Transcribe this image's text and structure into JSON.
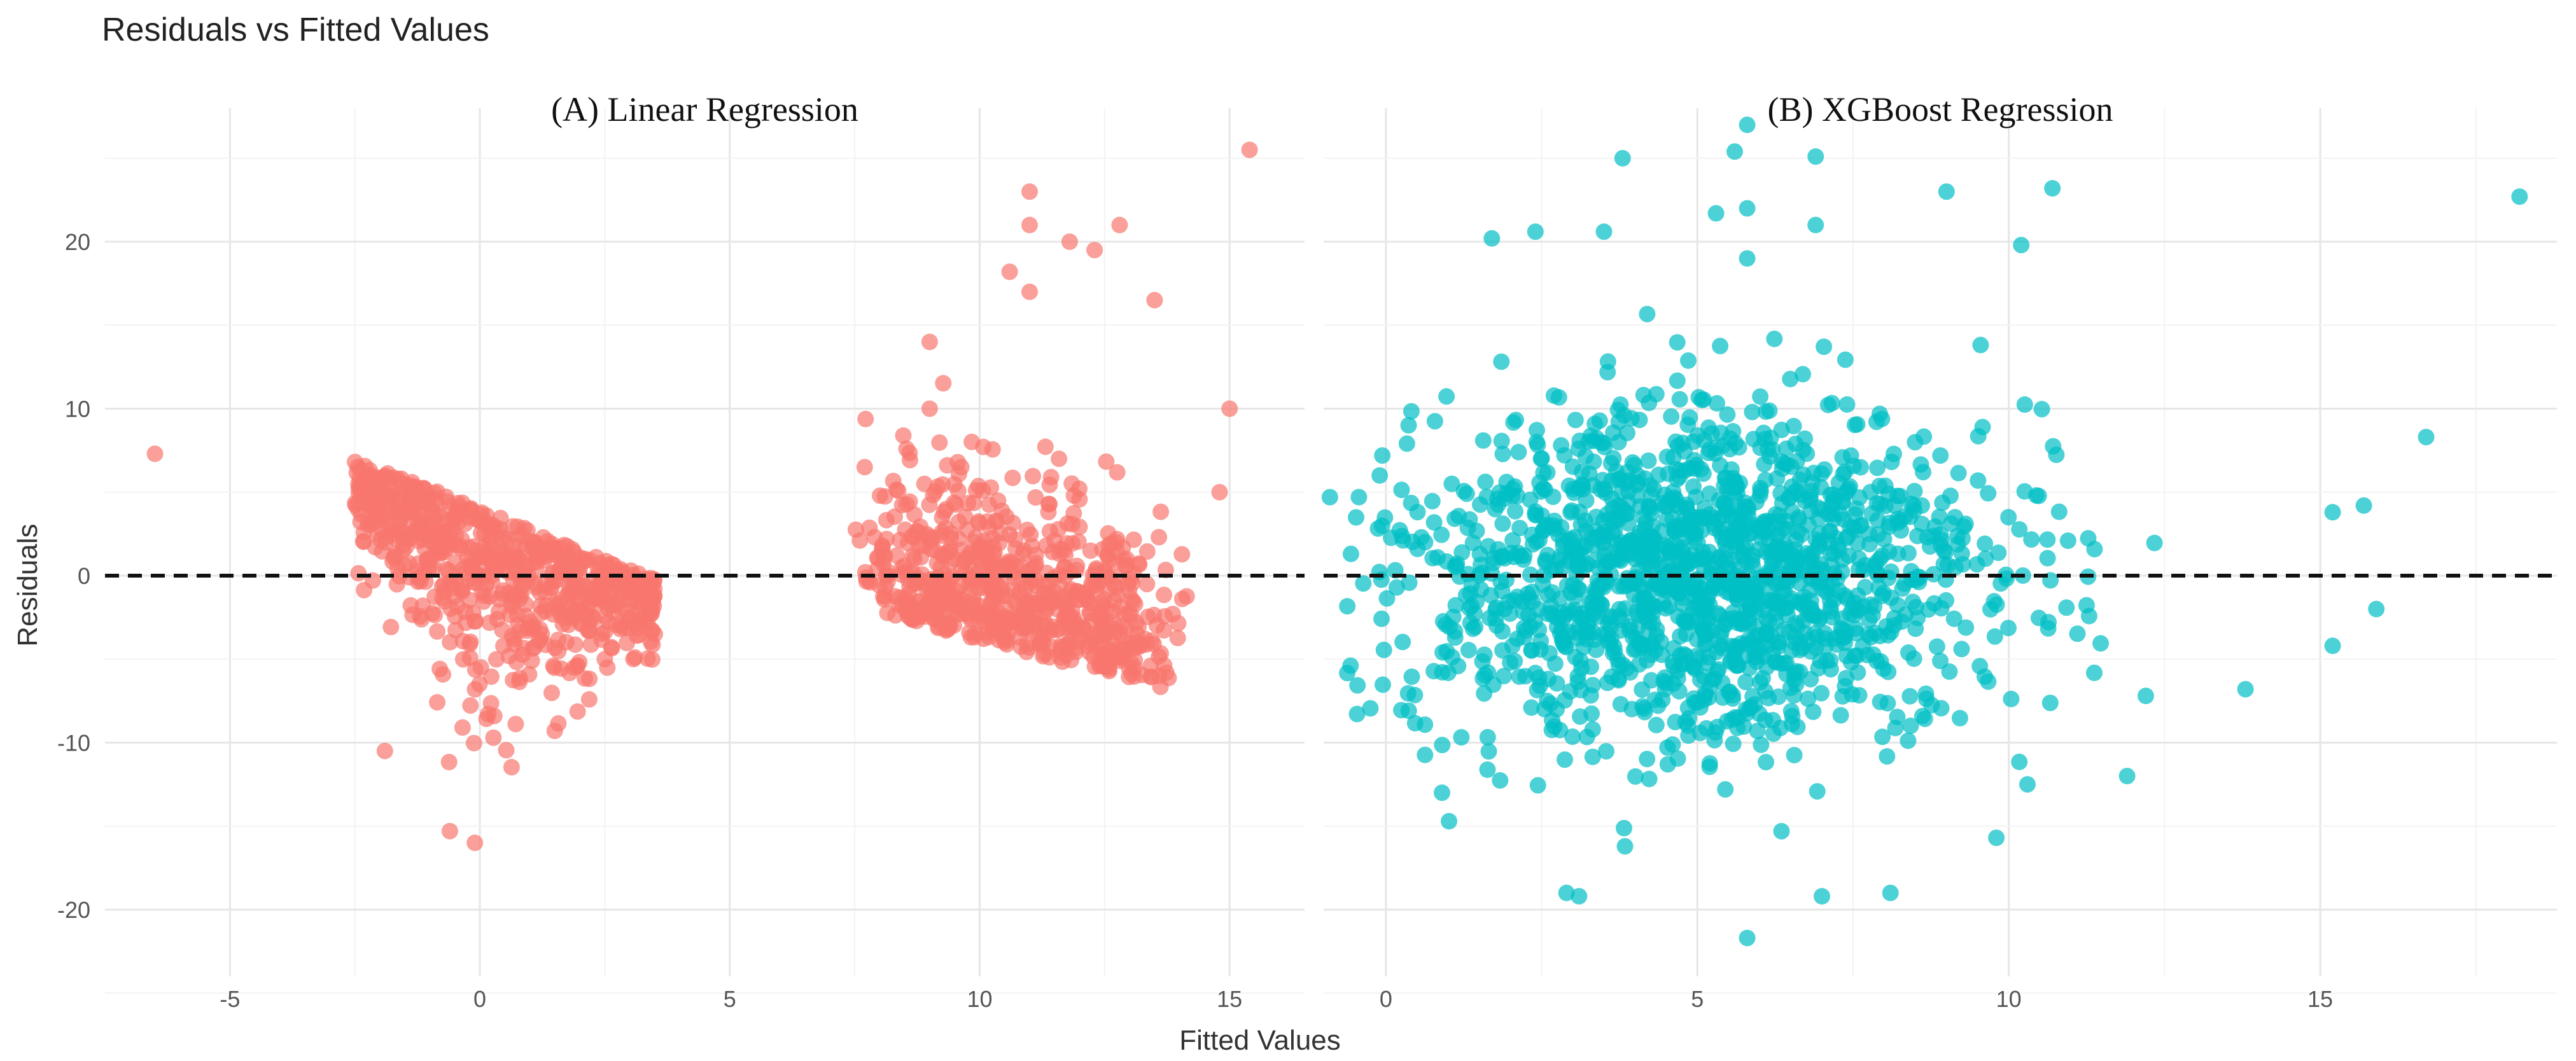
{
  "chart_data": {
    "title": "Residuals vs Fitted Values",
    "xlabel": "Fitted Values",
    "ylabel": "Residuals",
    "ylim": [
      -24,
      28
    ],
    "yticks": [
      -20,
      -10,
      0,
      10,
      20
    ],
    "reference_line": {
      "y": 0,
      "style": "dashed",
      "color": "#111111"
    },
    "panels": [
      {
        "type": "scatter",
        "title": "(A) Linear Regression",
        "color": "#f8766d",
        "xlim": [
          -7.5,
          16.5
        ],
        "xticks": [
          -5,
          0,
          5,
          10,
          15
        ],
        "clusters": [
          {
            "x_range": [
              -2.5,
              3.5
            ],
            "y_top_left": 7,
            "y_top_slope": -1.2,
            "y_bottom_center": -15,
            "count": 700
          },
          {
            "x_range": [
              7.7,
              14.5
            ],
            "y_bottom_left": -2,
            "y_bottom_slope": -0.8,
            "y_top_center": 12,
            "count": 700
          }
        ],
        "points": [
          [
            -6.5,
            7.3
          ],
          [
            15.4,
            25.5
          ],
          [
            11.0,
            23.0
          ],
          [
            11.0,
            21.0
          ],
          [
            12.8,
            21.0
          ],
          [
            11.8,
            20.0
          ],
          [
            12.3,
            19.5
          ],
          [
            10.6,
            18.2
          ],
          [
            11.0,
            17.0
          ],
          [
            13.5,
            16.5
          ],
          [
            15.0,
            10.0
          ],
          [
            14.8,
            5.0
          ],
          [
            7.7,
            6.5
          ],
          [
            9.0,
            10.0
          ],
          [
            9.0,
            14.0
          ],
          [
            -0.1,
            -16.0
          ],
          [
            -0.6,
            -15.3
          ],
          [
            -1.9,
            -10.5
          ],
          [
            3.5,
            -3.5
          ],
          [
            2.5,
            -5.0
          ]
        ]
      },
      {
        "type": "scatter",
        "title": "(B) XGBoost Regression",
        "color": "#00bfc4",
        "xlim": [
          -1.0,
          18.8
        ],
        "xticks": [
          0,
          5,
          10,
          15
        ],
        "clusters": [
          {
            "x_center": 5.0,
            "x_spread": 2.4,
            "y_center": 0,
            "y_spread": 5.0,
            "count": 1600
          }
        ],
        "points": [
          [
            5.8,
            27.0
          ],
          [
            5.6,
            25.4
          ],
          [
            6.9,
            25.1
          ],
          [
            3.8,
            25.0
          ],
          [
            18.2,
            22.7
          ],
          [
            10.7,
            23.2
          ],
          [
            9.0,
            23.0
          ],
          [
            5.3,
            21.7
          ],
          [
            5.8,
            22.0
          ],
          [
            6.9,
            21.0
          ],
          [
            1.7,
            20.2
          ],
          [
            2.4,
            20.6
          ],
          [
            3.5,
            20.6
          ],
          [
            10.2,
            19.8
          ],
          [
            5.8,
            19.0
          ],
          [
            16.7,
            8.3
          ],
          [
            15.7,
            4.2
          ],
          [
            15.2,
            3.8
          ],
          [
            15.9,
            -2.0
          ],
          [
            15.2,
            -4.2
          ],
          [
            13.8,
            -6.8
          ],
          [
            12.2,
            -7.2
          ],
          [
            11.9,
            -12.0
          ],
          [
            10.3,
            -12.5
          ],
          [
            9.8,
            -15.7
          ],
          [
            8.1,
            -19.0
          ],
          [
            7.0,
            -19.2
          ],
          [
            3.1,
            -19.2
          ],
          [
            2.9,
            -19.0
          ],
          [
            5.8,
            -21.7
          ],
          [
            0.9,
            -13.0
          ],
          [
            -0.9,
            4.7
          ],
          [
            -0.1,
            6.0
          ]
        ]
      }
    ]
  }
}
